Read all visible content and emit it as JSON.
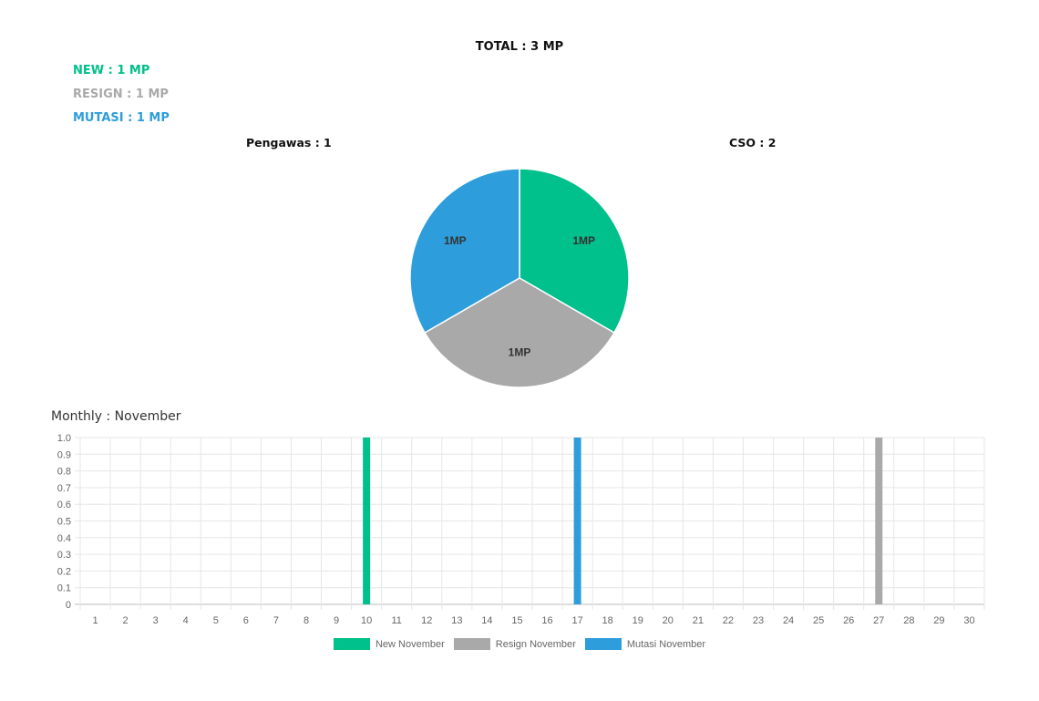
{
  "header": {
    "total": "TOTAL : 3 MP",
    "new": "NEW : 1 MP",
    "resign": "RESIGN : 1 MP",
    "mutasi": "MUTASI : 1 MP",
    "pengawas": "Pengawas : 1",
    "cso": "CSO : 2"
  },
  "colors": {
    "new": "#00c08b",
    "resign": "#a9a9a9",
    "mutasi": "#2e9ddb"
  },
  "monthly_label": "Monthly : November",
  "chart_data": [
    {
      "type": "pie",
      "categories": [
        "New",
        "Resign",
        "Mutasi"
      ],
      "values": [
        1,
        1,
        1
      ],
      "labels": [
        "1MP",
        "1MP",
        "1MP"
      ],
      "colors": [
        "#00c08b",
        "#a9a9a9",
        "#2e9ddb"
      ]
    },
    {
      "type": "bar",
      "categories": [
        "1",
        "2",
        "3",
        "4",
        "5",
        "6",
        "7",
        "8",
        "9",
        "10",
        "11",
        "12",
        "13",
        "14",
        "15",
        "16",
        "17",
        "18",
        "19",
        "20",
        "21",
        "22",
        "23",
        "24",
        "25",
        "26",
        "27",
        "28",
        "29",
        "30"
      ],
      "series": [
        {
          "name": "New November",
          "color": "#00c08b",
          "values": [
            0,
            0,
            0,
            0,
            0,
            0,
            0,
            0,
            0,
            1,
            0,
            0,
            0,
            0,
            0,
            0,
            0,
            0,
            0,
            0,
            0,
            0,
            0,
            0,
            0,
            0,
            0,
            0,
            0,
            0
          ]
        },
        {
          "name": "Resign November",
          "color": "#a9a9a9",
          "values": [
            0,
            0,
            0,
            0,
            0,
            0,
            0,
            0,
            0,
            0,
            0,
            0,
            0,
            0,
            0,
            0,
            0,
            0,
            0,
            0,
            0,
            0,
            0,
            0,
            0,
            0,
            1,
            0,
            0,
            0
          ]
        },
        {
          "name": "Mutasi November",
          "color": "#2e9ddb",
          "values": [
            0,
            0,
            0,
            0,
            0,
            0,
            0,
            0,
            0,
            0,
            0,
            0,
            0,
            0,
            0,
            0,
            1,
            0,
            0,
            0,
            0,
            0,
            0,
            0,
            0,
            0,
            0,
            0,
            0,
            0
          ]
        }
      ],
      "yticks": [
        "0",
        "0.1",
        "0.2",
        "0.3",
        "0.4",
        "0.5",
        "0.6",
        "0.7",
        "0.8",
        "0.9",
        "1.0"
      ],
      "ylim": [
        0,
        1
      ],
      "grid": true,
      "legend": "bottom"
    }
  ]
}
